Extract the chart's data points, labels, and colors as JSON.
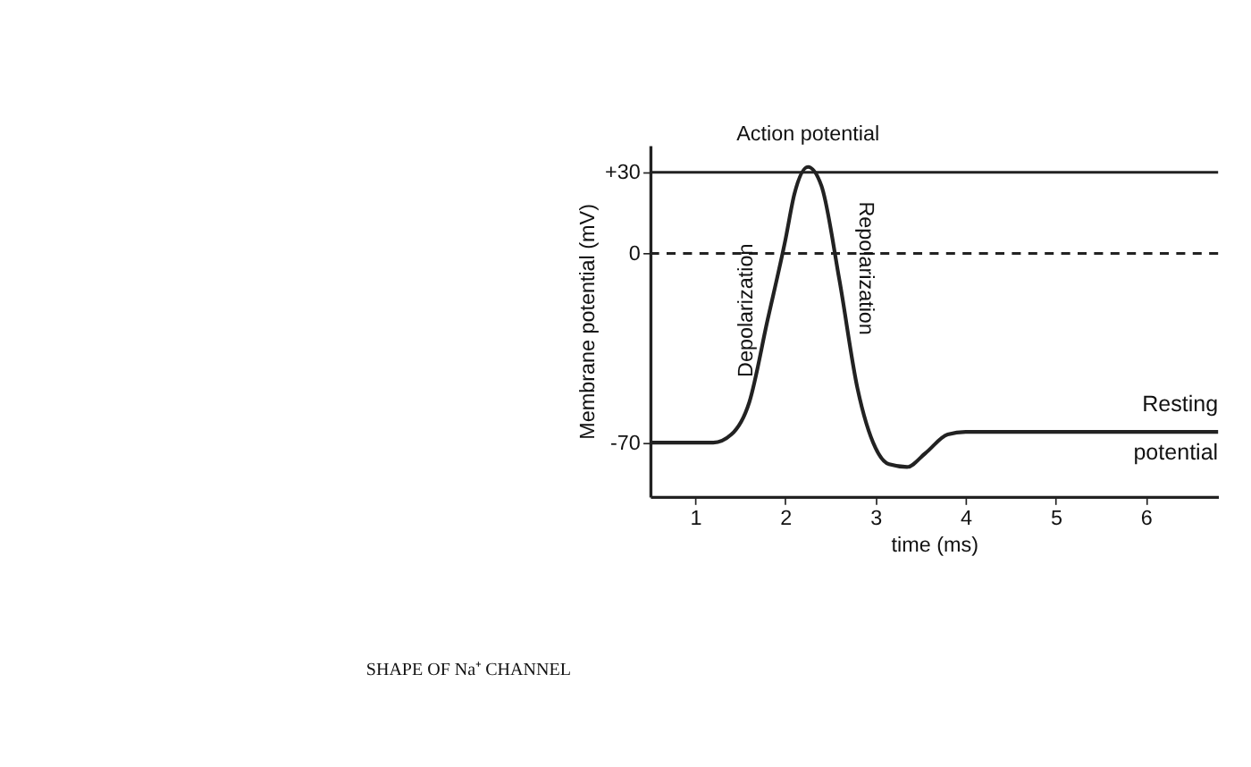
{
  "chart_data": {
    "type": "line",
    "xlabel": "time (ms)",
    "ylabel": "Membrane potential (mV)",
    "x": [
      0.5,
      1.2,
      1.4,
      1.6,
      1.8,
      2.0,
      2.1,
      2.25,
      2.4,
      2.6,
      2.8,
      3.0,
      3.15,
      3.35,
      3.55,
      3.8,
      4.0,
      6.8
    ],
    "series": [
      {
        "color": "#222222",
        "values": [
          -70,
          -70,
          -67,
          -55,
          -25,
          5,
          22,
          32,
          25,
          -10,
          -50,
          -72,
          -78,
          -79,
          -74,
          -67,
          -66,
          -66
        ]
      }
    ],
    "xlim": [
      0.5,
      6.8
    ],
    "xticks": [
      1,
      2,
      3,
      4,
      5,
      6
    ],
    "ylim": [
      -90,
      40
    ],
    "yticks": [
      {
        "value": 30,
        "label": "+30"
      },
      0,
      -70
    ],
    "ref_lines": [
      {
        "axis": "y",
        "value": 30,
        "color": "#222222",
        "line_style": "solid"
      },
      {
        "axis": "y",
        "value": 0,
        "color": "#222222",
        "line_style": "dashed"
      }
    ],
    "annotations": [
      {
        "text": "Action potential",
        "x": 2.25,
        "y": 32
      },
      "Depolarization",
      "Repolarization",
      "Resting potential",
      "SHAPE OF Na⁺ CHANNEL"
    ],
    "grid": false,
    "marker": "none",
    "line_style": "solid"
  }
}
